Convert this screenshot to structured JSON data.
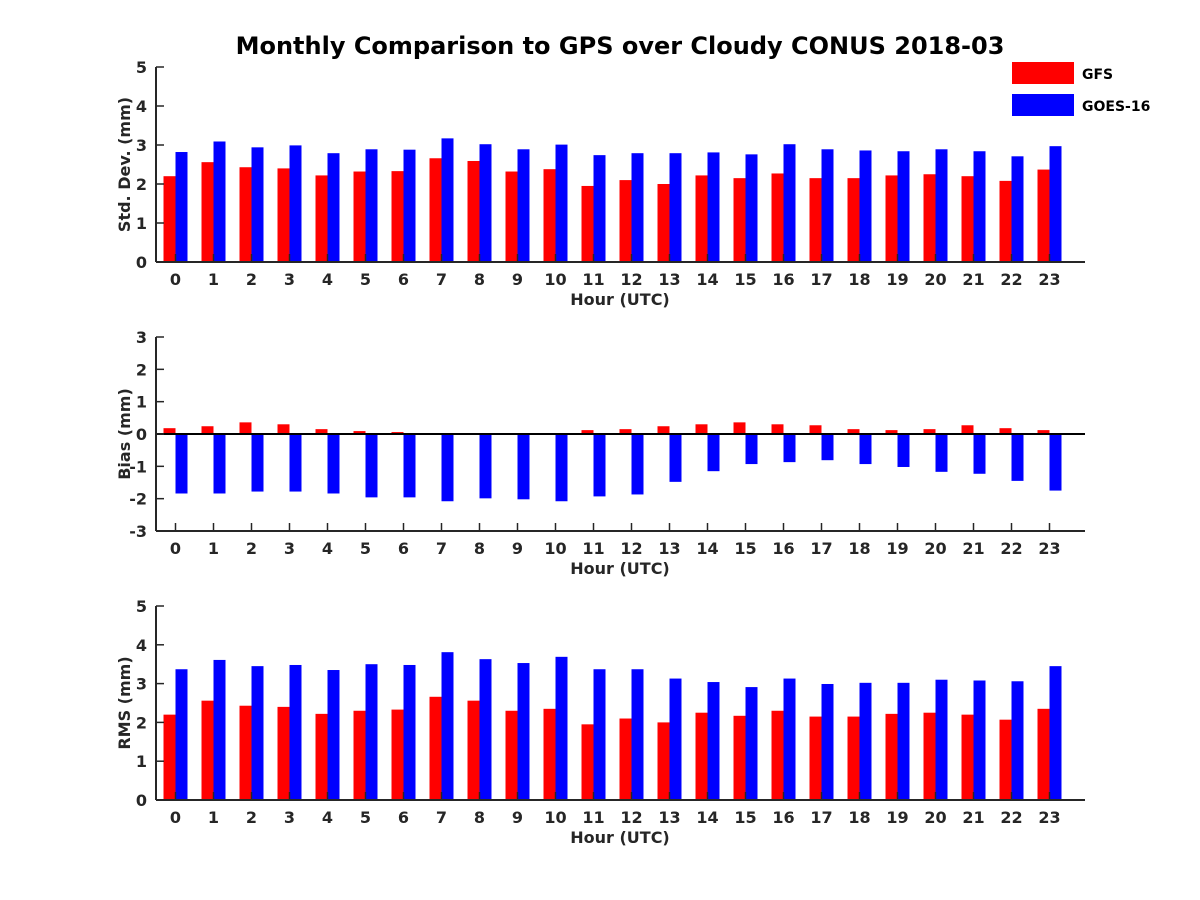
{
  "chart_data": {
    "type": "bar",
    "title": "Monthly Comparison to GPS over Cloudy CONUS 2018-03",
    "legend": {
      "placement": "top-right",
      "entries": [
        {
          "name": "GFS",
          "color": "#ff0000"
        },
        {
          "name": "GOES-16",
          "color": "#0000ff"
        }
      ]
    },
    "categories": [
      "0",
      "1",
      "2",
      "3",
      "4",
      "5",
      "6",
      "7",
      "8",
      "9",
      "10",
      "11",
      "12",
      "13",
      "14",
      "15",
      "16",
      "17",
      "18",
      "19",
      "20",
      "21",
      "22",
      "23"
    ],
    "panels": [
      {
        "id": "std",
        "xlabel": "Hour (UTC)",
        "ylabel": "Std. Dev. (mm)",
        "ylim": [
          0,
          5
        ],
        "yticks": [
          0,
          1,
          2,
          3,
          4,
          5
        ],
        "series": [
          {
            "name": "GFS",
            "color": "#ff0000",
            "values": [
              2.2,
              2.56,
              2.43,
              2.4,
              2.22,
              2.32,
              2.33,
              2.66,
              2.59,
              2.32,
              2.38,
              1.95,
              2.1,
              2.0,
              2.22,
              2.15,
              2.27,
              2.15,
              2.15,
              2.22,
              2.25,
              2.2,
              2.08,
              2.37
            ]
          },
          {
            "name": "GOES-16",
            "color": "#0000ff",
            "values": [
              2.82,
              3.09,
              2.94,
              2.99,
              2.79,
              2.89,
              2.88,
              3.17,
              3.02,
              2.89,
              3.01,
              2.74,
              2.79,
              2.79,
              2.81,
              2.76,
              3.02,
              2.89,
              2.86,
              2.84,
              2.89,
              2.84,
              2.71,
              2.97
            ]
          }
        ]
      },
      {
        "id": "bias",
        "xlabel": "Hour (UTC)",
        "ylabel": "Bias (mm)",
        "ylim": [
          -3,
          3
        ],
        "yticks": [
          -3,
          -2,
          -1,
          0,
          1,
          2,
          3
        ],
        "series": [
          {
            "name": "GFS",
            "color": "#ff0000",
            "values": [
              0.18,
              0.24,
              0.36,
              0.3,
              0.15,
              0.09,
              0.06,
              0.0,
              0.03,
              0.03,
              0.0,
              0.12,
              0.15,
              0.24,
              0.3,
              0.36,
              0.3,
              0.27,
              0.15,
              0.12,
              0.15,
              0.27,
              0.18,
              0.12
            ]
          },
          {
            "name": "GOES-16",
            "color": "#0000ff",
            "values": [
              -1.84,
              -1.84,
              -1.78,
              -1.78,
              -1.84,
              -1.96,
              -1.96,
              -2.08,
              -1.99,
              -2.02,
              -2.08,
              -1.93,
              -1.87,
              -1.48,
              -1.15,
              -0.93,
              -0.87,
              -0.81,
              -0.93,
              -1.02,
              -1.17,
              -1.23,
              -1.45,
              -1.75
            ]
          }
        ]
      },
      {
        "id": "rms",
        "xlabel": "Hour (UTC)",
        "ylabel": "RMS (mm)",
        "ylim": [
          0,
          5
        ],
        "yticks": [
          0,
          1,
          2,
          3,
          4,
          5
        ],
        "series": [
          {
            "name": "GFS",
            "color": "#ff0000",
            "values": [
              2.2,
              2.56,
              2.43,
              2.4,
              2.22,
              2.3,
              2.33,
              2.66,
              2.56,
              2.3,
              2.35,
              1.95,
              2.1,
              2.0,
              2.25,
              2.17,
              2.3,
              2.15,
              2.15,
              2.22,
              2.25,
              2.2,
              2.07,
              2.35
            ]
          },
          {
            "name": "GOES-16",
            "color": "#0000ff",
            "values": [
              3.37,
              3.61,
              3.45,
              3.48,
              3.35,
              3.5,
              3.48,
              3.81,
              3.63,
              3.53,
              3.69,
              3.37,
              3.37,
              3.13,
              3.04,
              2.91,
              3.13,
              2.99,
              3.02,
              3.02,
              3.1,
              3.08,
              3.06,
              3.45
            ]
          }
        ]
      }
    ]
  }
}
